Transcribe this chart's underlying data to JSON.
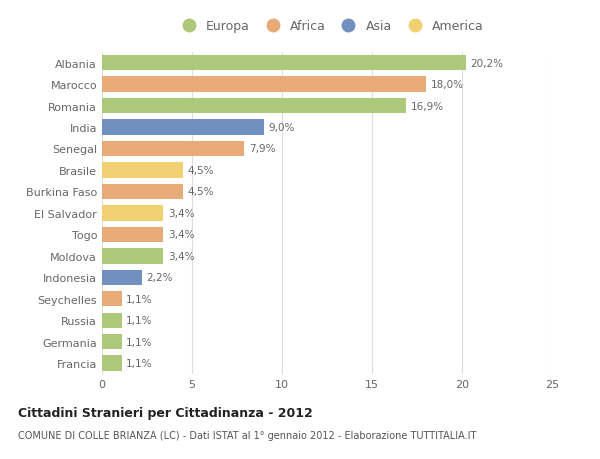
{
  "countries": [
    "Albania",
    "Marocco",
    "Romania",
    "India",
    "Senegal",
    "Brasile",
    "Burkina Faso",
    "El Salvador",
    "Togo",
    "Moldova",
    "Indonesia",
    "Seychelles",
    "Russia",
    "Germania",
    "Francia"
  ],
  "values": [
    20.2,
    18.0,
    16.9,
    9.0,
    7.9,
    4.5,
    4.5,
    3.4,
    3.4,
    3.4,
    2.2,
    1.1,
    1.1,
    1.1,
    1.1
  ],
  "continents": [
    "Europa",
    "Africa",
    "Europa",
    "Asia",
    "Africa",
    "America",
    "Africa",
    "America",
    "Africa",
    "Europa",
    "Asia",
    "Africa",
    "Europa",
    "Europa",
    "Europa"
  ],
  "continent_colors": {
    "Europa": "#adc87a",
    "Africa": "#e8ab78",
    "Asia": "#7090c0",
    "America": "#f0d070"
  },
  "legend_order": [
    "Europa",
    "Africa",
    "Asia",
    "America"
  ],
  "title": "Cittadini Stranieri per Cittadinanza - 2012",
  "subtitle": "COMUNE DI COLLE BRIANZA (LC) - Dati ISTAT al 1° gennaio 2012 - Elaborazione TUTTITALIA.IT",
  "xlim": [
    0,
    25
  ],
  "xticks": [
    0,
    5,
    10,
    15,
    20,
    25
  ],
  "background_color": "#ffffff",
  "bar_height": 0.72,
  "grid_color": "#dddddd",
  "text_color": "#666666",
  "label_color": "#666666"
}
